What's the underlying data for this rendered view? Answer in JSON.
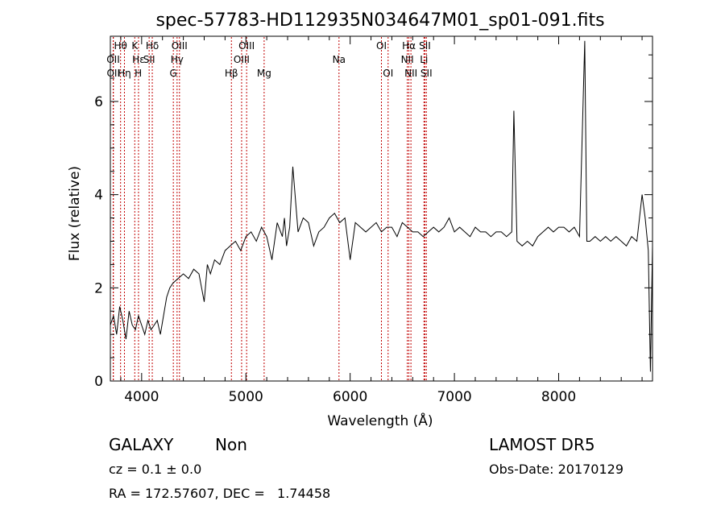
{
  "chart_data": {
    "type": "line",
    "title": "spec-57783-HD112935N034647M01_sp01-091.fits",
    "xlabel": "Wavelength (Å)",
    "ylabel": "Flux (relative)",
    "xlim": [
      3700,
      8900
    ],
    "ylim": [
      0,
      7.4
    ],
    "x_ticks": [
      4000,
      5000,
      6000,
      7000,
      8000
    ],
    "y_ticks": [
      0,
      2,
      4,
      6
    ],
    "grid": false,
    "line_color": "#000000",
    "marker_color": "#c00000",
    "line_markers": [
      {
        "label": "OII",
        "x": 3727,
        "row": 2
      },
      {
        "label": "OII",
        "x": 3729,
        "row": 3
      },
      {
        "label": "Hθ",
        "x": 3798,
        "row": 1
      },
      {
        "label": "Hη",
        "x": 3835,
        "row": 3
      },
      {
        "label": "Hε",
        "x": 3970,
        "row": 2
      },
      {
        "label": "K",
        "x": 3934,
        "row": 1
      },
      {
        "label": "H",
        "x": 3968,
        "row": 3
      },
      {
        "label": "Hδ",
        "x": 4102,
        "row": 1
      },
      {
        "label": "SII",
        "x": 4072,
        "row": 2
      },
      {
        "label": "OIII",
        "x": 4363,
        "row": 1
      },
      {
        "label": "Hγ",
        "x": 4340,
        "row": 2
      },
      {
        "label": "G",
        "x": 4304,
        "row": 3
      },
      {
        "label": "Hβ",
        "x": 4861,
        "row": 3
      },
      {
        "label": "OIII",
        "x": 5007,
        "row": 1
      },
      {
        "label": "OIII",
        "x": 4959,
        "row": 2
      },
      {
        "label": "Mg",
        "x": 5175,
        "row": 3
      },
      {
        "label": "Na",
        "x": 5893,
        "row": 2
      },
      {
        "label": "OI",
        "x": 6300,
        "row": 1
      },
      {
        "label": "OI",
        "x": 6364,
        "row": 3
      },
      {
        "label": "Hα",
        "x": 6563,
        "row": 1
      },
      {
        "label": "NII",
        "x": 6548,
        "row": 2
      },
      {
        "label": "NII",
        "x": 6583,
        "row": 3
      },
      {
        "label": "SII",
        "x": 6717,
        "row": 1
      },
      {
        "label": "Li",
        "x": 6708,
        "row": 2
      },
      {
        "label": "SII",
        "x": 6731,
        "row": 3
      }
    ],
    "series": [
      {
        "x": [
          3700,
          3730,
          3760,
          3790,
          3820,
          3850,
          3880,
          3910,
          3940,
          3970,
          4000,
          4030,
          4060,
          4090,
          4120,
          4150,
          4180,
          4210,
          4240,
          4270,
          4300,
          4350,
          4400,
          4450,
          4500,
          4550,
          4600,
          4630,
          4660,
          4700,
          4750,
          4800,
          4850,
          4900,
          4950,
          5000,
          5050,
          5100,
          5150,
          5200,
          5250,
          5300,
          5350,
          5370,
          5390,
          5420,
          5450,
          5500,
          5550,
          5600,
          5650,
          5700,
          5750,
          5800,
          5850,
          5900,
          5950,
          6000,
          6050,
          6100,
          6150,
          6200,
          6250,
          6300,
          6350,
          6400,
          6450,
          6500,
          6550,
          6600,
          6650,
          6700,
          6750,
          6800,
          6850,
          6900,
          6950,
          7000,
          7050,
          7100,
          7150,
          7200,
          7250,
          7300,
          7350,
          7400,
          7450,
          7500,
          7550,
          7570,
          7600,
          7650,
          7700,
          7750,
          7800,
          7850,
          7900,
          7950,
          8000,
          8050,
          8100,
          8150,
          8200,
          8250,
          8270,
          8300,
          8350,
          8400,
          8450,
          8500,
          8550,
          8600,
          8650,
          8700,
          8750,
          8800,
          8830,
          8860,
          8880,
          8900
        ],
        "y": [
          1.2,
          1.4,
          1.0,
          1.6,
          1.3,
          0.9,
          1.5,
          1.2,
          1.1,
          1.4,
          1.2,
          1.0,
          1.3,
          1.1,
          1.2,
          1.3,
          1.0,
          1.4,
          1.8,
          2.0,
          2.1,
          2.2,
          2.3,
          2.2,
          2.4,
          2.3,
          1.7,
          2.5,
          2.3,
          2.6,
          2.5,
          2.8,
          2.9,
          3.0,
          2.8,
          3.1,
          3.2,
          3.0,
          3.3,
          3.1,
          2.6,
          3.4,
          3.1,
          3.5,
          2.9,
          3.3,
          4.6,
          3.2,
          3.5,
          3.4,
          2.9,
          3.2,
          3.3,
          3.5,
          3.6,
          3.4,
          3.5,
          2.6,
          3.4,
          3.3,
          3.2,
          3.3,
          3.4,
          3.2,
          3.3,
          3.3,
          3.1,
          3.4,
          3.3,
          3.2,
          3.2,
          3.1,
          3.2,
          3.3,
          3.2,
          3.3,
          3.5,
          3.2,
          3.3,
          3.2,
          3.1,
          3.3,
          3.2,
          3.2,
          3.1,
          3.2,
          3.2,
          3.1,
          3.2,
          5.8,
          3.0,
          2.9,
          3.0,
          2.9,
          3.1,
          3.2,
          3.3,
          3.2,
          3.3,
          3.3,
          3.2,
          3.3,
          3.1,
          7.3,
          3.0,
          3.0,
          3.1,
          3.0,
          3.1,
          3.0,
          3.1,
          3.0,
          2.9,
          3.1,
          3.0,
          4.0,
          3.5,
          2.8,
          0.2,
          2.9
        ]
      }
    ]
  },
  "info": {
    "class_label": "GALAXY",
    "subclass": "Non",
    "survey": "LAMOST DR5",
    "cz_text": "cz = 0.1 ± 0.0",
    "obs_date": "Obs-Date: 20170129",
    "radec": "RA = 172.57607, DEC =   1.74458"
  }
}
